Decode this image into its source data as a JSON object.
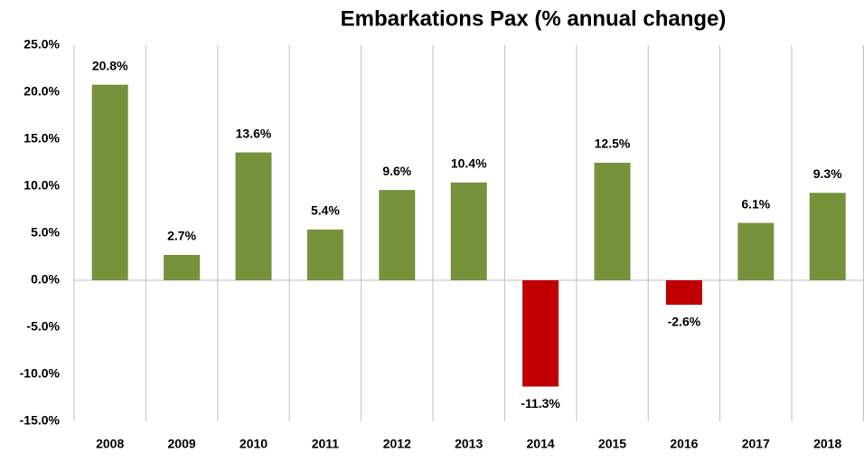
{
  "chart_data": {
    "type": "bar",
    "title": "Embarkations Pax (% annual change)",
    "categories": [
      "2008",
      "2009",
      "2010",
      "2011",
      "2012",
      "2013",
      "2014",
      "2015",
      "2016",
      "2017",
      "2018"
    ],
    "values": [
      20.8,
      2.7,
      13.6,
      5.4,
      9.6,
      10.4,
      -11.3,
      12.5,
      -2.6,
      6.1,
      9.3
    ],
    "value_labels": [
      "20.8%",
      "2.7%",
      "13.6%",
      "5.4%",
      "9.6%",
      "10.4%",
      "-11.3%",
      "12.5%",
      "-2.6%",
      "6.1%",
      "9.3%"
    ],
    "color": "#76933c",
    "negative_color": "#c00000",
    "ylim": [
      -15,
      25
    ],
    "yticks": [
      {
        "value": -15,
        "label": "-15.0%"
      },
      {
        "value": -10,
        "label": "-10.0%"
      },
      {
        "value": -5,
        "label": "-5.0%"
      },
      {
        "value": 0,
        "label": "0.0%"
      },
      {
        "value": 5,
        "label": "5.0%"
      },
      {
        "value": 10,
        "label": "10.0%"
      },
      {
        "value": 15,
        "label": "15.0%"
      },
      {
        "value": 20,
        "label": "20.0%"
      },
      {
        "value": 25,
        "label": "25.0%"
      }
    ],
    "grid": false
  }
}
